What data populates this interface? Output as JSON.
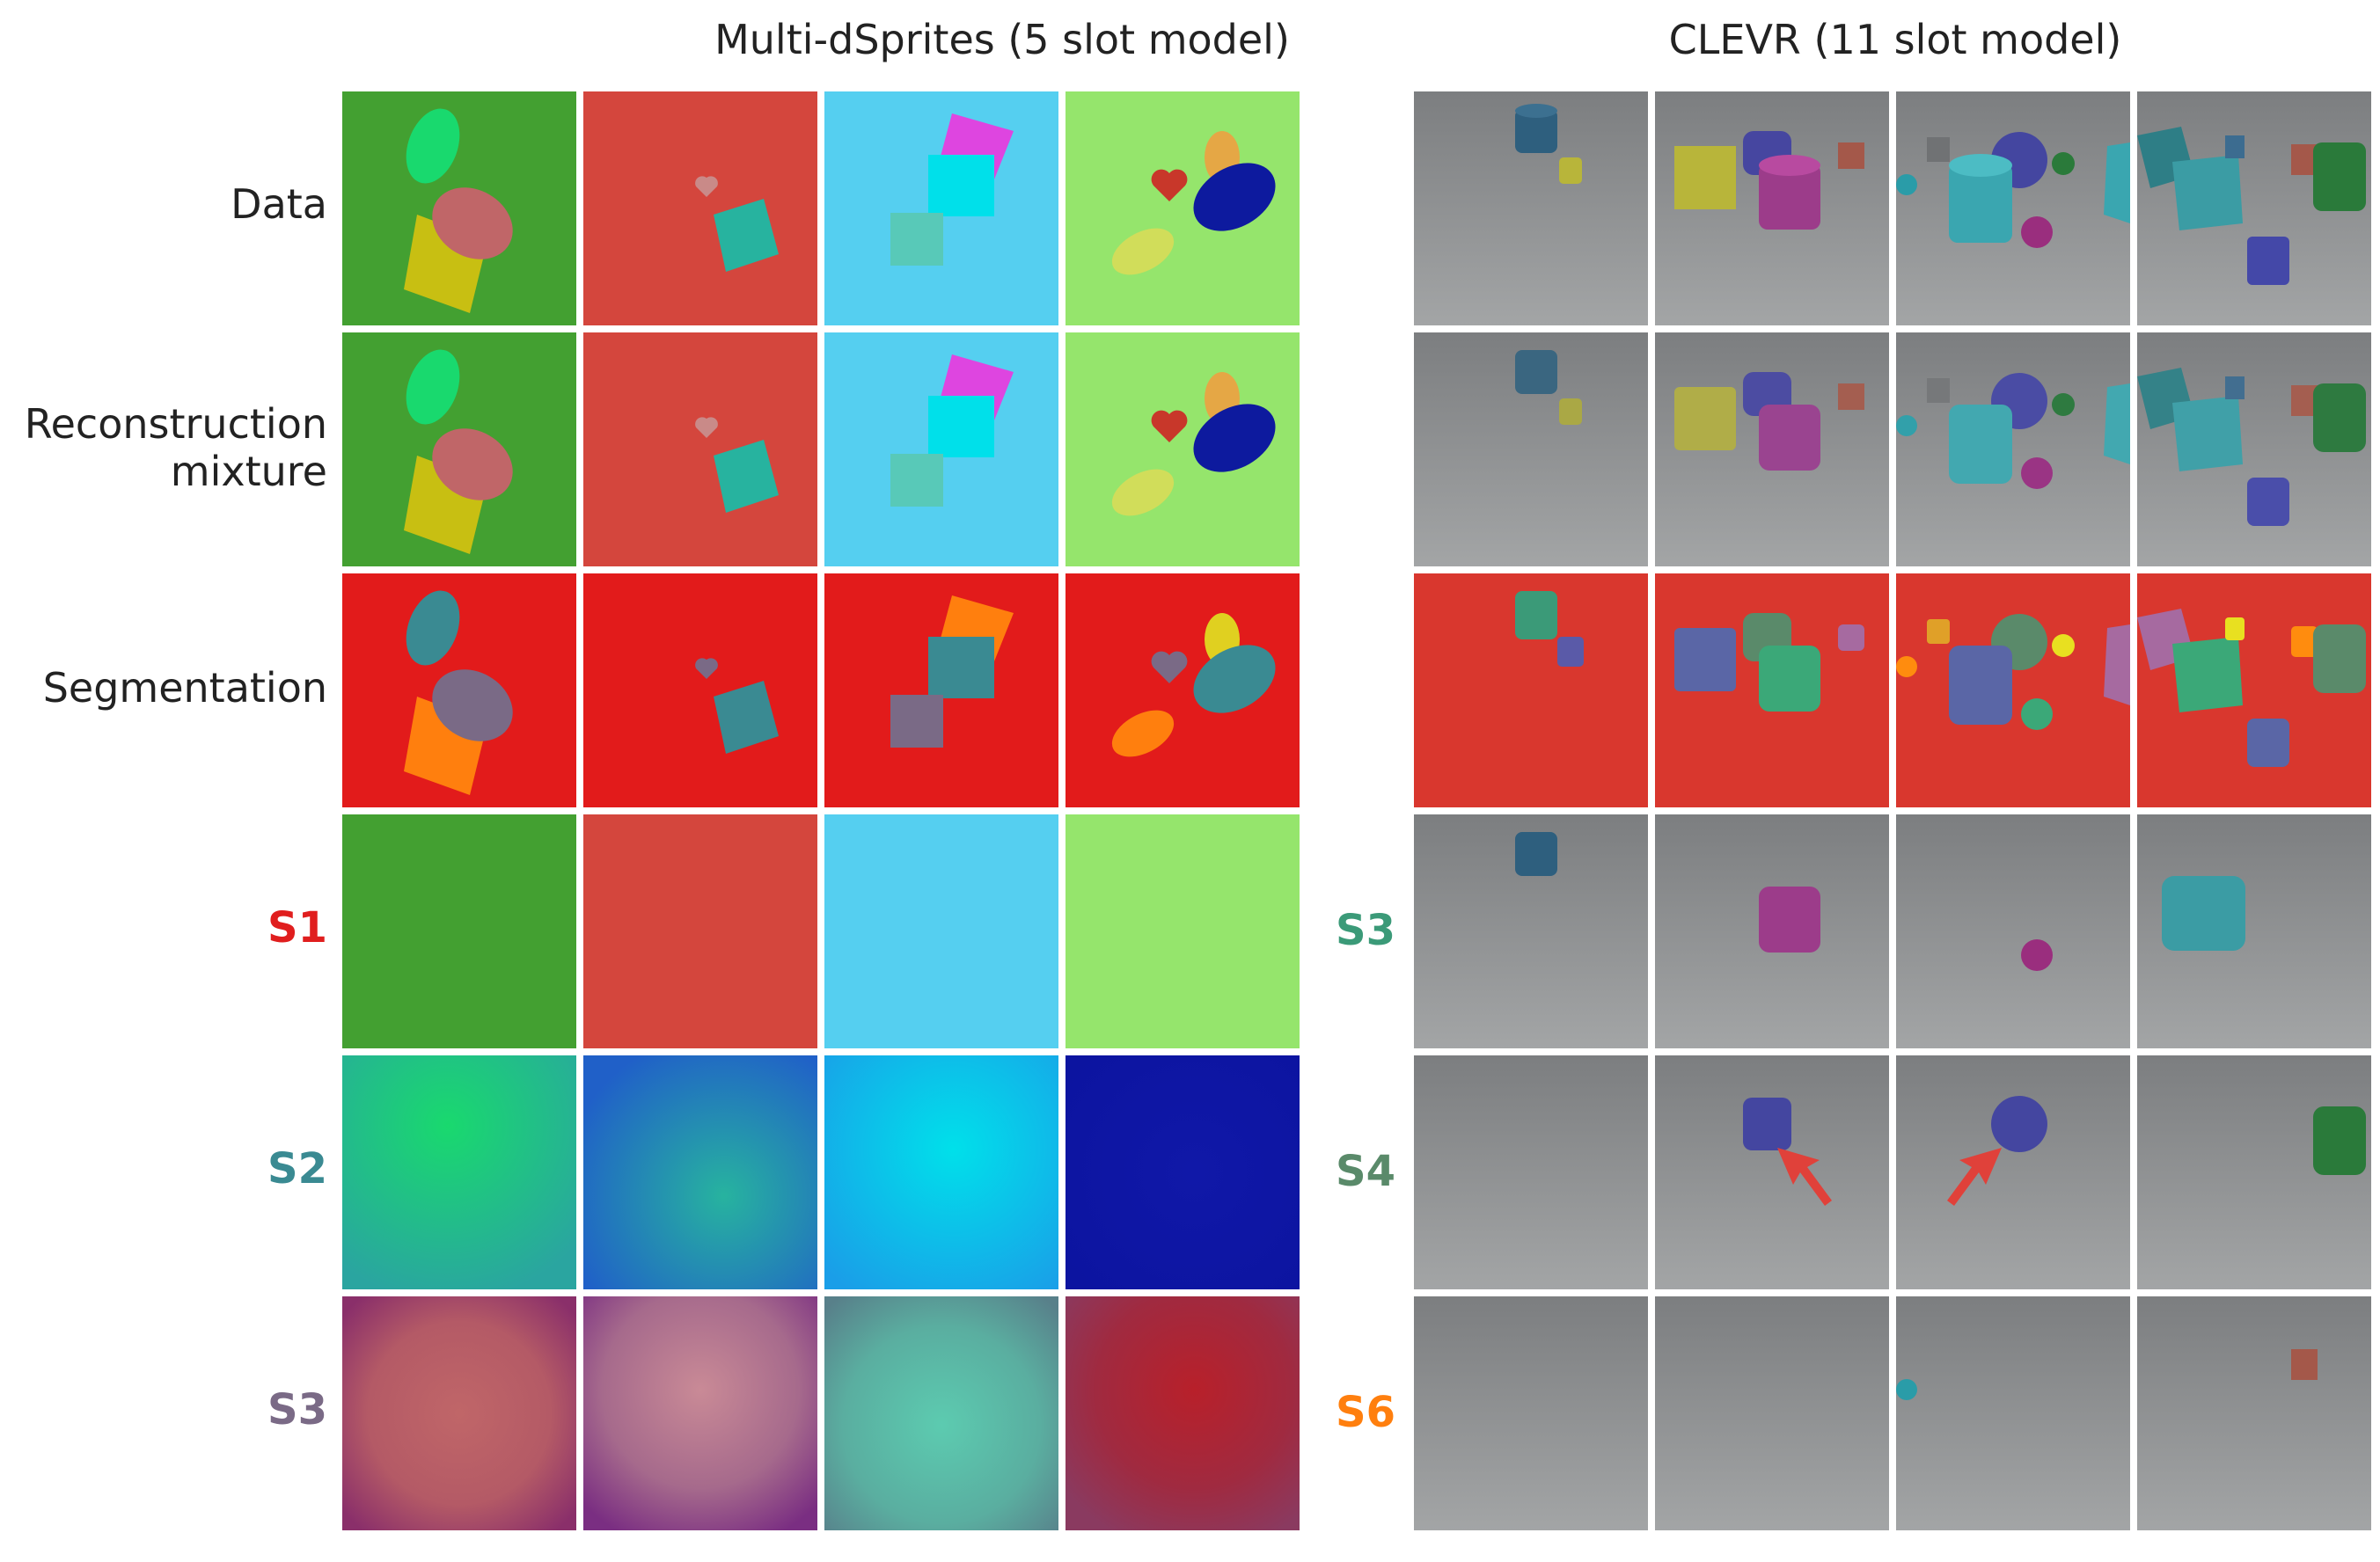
{
  "left_panel": {
    "title": "Multi-dSprites (5 slot model)",
    "row_labels": [
      "Data",
      "Reconstruction\nmixture",
      "Segmentation",
      "S1",
      "S2",
      "S3"
    ],
    "slot_label_colors": {
      "S1": "#e01e1e",
      "S2": "#3a8a92",
      "S3": "#7a6a86"
    }
  },
  "right_panel": {
    "title": "CLEVR (11 slot model)",
    "slot_labels": [
      "S3",
      "S4",
      "S6"
    ],
    "slot_label_colors": {
      "S3": "#3b9a78",
      "S4": "#5a8a6a",
      "S6": "#ff7f0e"
    },
    "annotation": "red-arrow-icon"
  },
  "colors": {
    "segmentation_background": "#e21b1b",
    "clevr_floor": "#8f9192",
    "arrow": "#e0413a"
  }
}
